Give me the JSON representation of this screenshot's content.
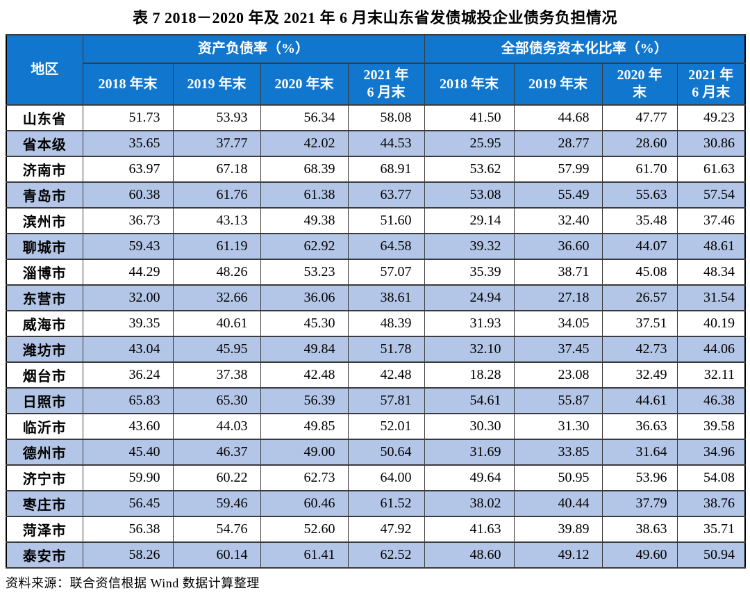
{
  "page": {
    "title": "表 7  2018－2020 年及 2021 年 6 月末山东省发债城投企业债务负担情况",
    "source_note": "资料来源：联合资信根据 Wind 数据计算整理"
  },
  "colors": {
    "header_bg": "#1176cd",
    "stripe_bg": "#b4c6e7",
    "border": "#3a3a3a"
  },
  "chart_data": {
    "type": "table",
    "title": "表 7  2018－2020 年及 2021 年 6 月末山东省发债城投企业债务负担情况",
    "region_column_header": "地区",
    "column_groups": [
      {
        "label": "资产负债率（%）",
        "columns": [
          "2018 年末",
          "2019 年末",
          "2020 年末",
          "2021 年\n6 月末"
        ]
      },
      {
        "label": "全部债务资本化比率（%）",
        "columns": [
          "2018 年末",
          "2019 年末",
          "2020 年\n末",
          "2021 年\n6 月末"
        ]
      }
    ],
    "rows": [
      {
        "region": "山东省",
        "values": [
          "51.73",
          "53.93",
          "56.34",
          "58.08",
          "41.50",
          "44.68",
          "47.77",
          "49.23"
        ]
      },
      {
        "region": "省本级",
        "values": [
          "35.65",
          "37.77",
          "42.02",
          "44.53",
          "25.95",
          "28.77",
          "28.60",
          "30.86"
        ]
      },
      {
        "region": "济南市",
        "values": [
          "63.97",
          "67.18",
          "68.39",
          "68.91",
          "53.62",
          "57.99",
          "61.70",
          "61.63"
        ]
      },
      {
        "region": "青岛市",
        "values": [
          "60.38",
          "61.76",
          "61.38",
          "63.77",
          "53.08",
          "55.49",
          "55.63",
          "57.54"
        ]
      },
      {
        "region": "滨州市",
        "values": [
          "36.73",
          "43.13",
          "49.38",
          "51.60",
          "29.14",
          "32.40",
          "35.48",
          "37.46"
        ]
      },
      {
        "region": "聊城市",
        "values": [
          "59.43",
          "61.19",
          "62.92",
          "64.58",
          "39.32",
          "36.60",
          "44.07",
          "48.61"
        ]
      },
      {
        "region": "淄博市",
        "values": [
          "44.29",
          "48.26",
          "53.23",
          "57.07",
          "35.39",
          "38.71",
          "45.08",
          "48.34"
        ]
      },
      {
        "region": "东营市",
        "values": [
          "32.00",
          "32.66",
          "36.06",
          "38.61",
          "24.94",
          "27.18",
          "26.57",
          "31.54"
        ]
      },
      {
        "region": "威海市",
        "values": [
          "39.35",
          "40.61",
          "45.30",
          "48.39",
          "31.93",
          "34.05",
          "37.51",
          "40.19"
        ]
      },
      {
        "region": "潍坊市",
        "values": [
          "43.04",
          "45.95",
          "49.84",
          "51.78",
          "32.10",
          "37.45",
          "42.73",
          "44.06"
        ]
      },
      {
        "region": "烟台市",
        "values": [
          "36.24",
          "37.38",
          "42.48",
          "42.48",
          "18.28",
          "23.08",
          "32.49",
          "32.11"
        ]
      },
      {
        "region": "日照市",
        "values": [
          "65.83",
          "65.30",
          "56.39",
          "57.81",
          "54.61",
          "55.87",
          "44.61",
          "46.38"
        ]
      },
      {
        "region": "临沂市",
        "values": [
          "43.60",
          "44.03",
          "49.85",
          "52.01",
          "30.30",
          "31.30",
          "36.63",
          "39.58"
        ]
      },
      {
        "region": "德州市",
        "values": [
          "45.40",
          "46.37",
          "49.00",
          "50.64",
          "31.69",
          "33.85",
          "31.64",
          "34.96"
        ]
      },
      {
        "region": "济宁市",
        "values": [
          "59.90",
          "60.22",
          "62.73",
          "64.00",
          "49.64",
          "50.95",
          "53.96",
          "54.08"
        ]
      },
      {
        "region": "枣庄市",
        "values": [
          "56.45",
          "59.46",
          "60.46",
          "61.52",
          "38.02",
          "40.44",
          "37.79",
          "38.76"
        ]
      },
      {
        "region": "菏泽市",
        "values": [
          "56.38",
          "54.76",
          "52.60",
          "47.92",
          "41.63",
          "39.89",
          "38.63",
          "35.71"
        ]
      },
      {
        "region": "泰安市",
        "values": [
          "58.26",
          "60.14",
          "61.41",
          "62.52",
          "48.60",
          "49.12",
          "49.60",
          "50.94"
        ]
      }
    ]
  }
}
